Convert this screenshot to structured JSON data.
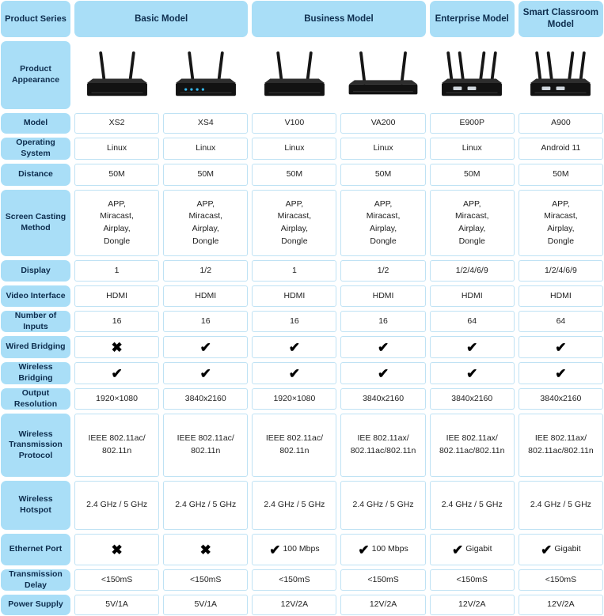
{
  "theme": {
    "header_fill": "#a9def7",
    "header_text": "#0d2d4e",
    "cell_border": "#bfe2f4",
    "cell_text": "#222222",
    "mark_color": "#000000",
    "led_color": "#35b9ef"
  },
  "table": {
    "corner_label": "Product Series",
    "groups": [
      {
        "label": "Basic Model",
        "span": 2
      },
      {
        "label": "Business Model",
        "span": 2
      },
      {
        "label": "Enterprise Model",
        "span": 1
      },
      {
        "label": "Smart Classroom Model",
        "span": 1
      }
    ],
    "appearance_row_label": "Product Appearance",
    "devices": [
      {
        "model": "XS2",
        "antennas": 2
      },
      {
        "model": "XS4",
        "antennas": 2,
        "leds": true
      },
      {
        "model": "V100",
        "antennas": 2
      },
      {
        "model": "VA200",
        "antennas": 2,
        "wide": true
      },
      {
        "model": "E900P",
        "antennas": 4,
        "ports": true
      },
      {
        "model": "A900",
        "antennas": 4,
        "ports": true
      }
    ],
    "marks": {
      "check": "✔",
      "cross": "✖"
    },
    "rows": [
      {
        "label": "Model",
        "cells": [
          "XS2",
          "XS4",
          "V100",
          "VA200",
          "E900P",
          "A900"
        ]
      },
      {
        "label": "Operating System",
        "cells": [
          "Linux",
          "Linux",
          "Linux",
          "Linux",
          "Linux",
          "Android 11"
        ]
      },
      {
        "label": "Distance",
        "cells": [
          "50M",
          "50M",
          "50M",
          "50M",
          "50M",
          "50M"
        ]
      },
      {
        "label": "Screen Casting Method",
        "cells": [
          "APP,\nMiracast,\nAirplay,\nDongle",
          "APP,\nMiracast,\nAirplay,\nDongle",
          "APP,\nMiracast,\nAirplay,\nDongle",
          "APP,\nMiracast,\nAirplay,\nDongle",
          "APP,\nMiracast,\nAirplay,\nDongle",
          "APP,\nMiracast,\nAirplay,\nDongle"
        ]
      },
      {
        "label": "Display",
        "cells": [
          "1",
          "1/2",
          "1",
          "1/2",
          "1/2/4/6/9",
          "1/2/4/6/9"
        ]
      },
      {
        "label": "Video Interface",
        "cells": [
          "HDMI",
          "HDMI",
          "HDMI",
          "HDMI",
          "HDMI",
          "HDMI"
        ]
      },
      {
        "label": "Number of Inputs",
        "cells": [
          "16",
          "16",
          "16",
          "16",
          "64",
          "64"
        ]
      },
      {
        "label": "Wired Bridging",
        "type": "mark",
        "cells": [
          {
            "mark": "cross"
          },
          {
            "mark": "check"
          },
          {
            "mark": "check"
          },
          {
            "mark": "check"
          },
          {
            "mark": "check"
          },
          {
            "mark": "check"
          }
        ]
      },
      {
        "label": "Wireless Bridging",
        "type": "mark",
        "cells": [
          {
            "mark": "check"
          },
          {
            "mark": "check"
          },
          {
            "mark": "check"
          },
          {
            "mark": "check"
          },
          {
            "mark": "check"
          },
          {
            "mark": "check"
          }
        ]
      },
      {
        "label": "Output Resolution",
        "cells": [
          "1920×1080",
          "3840x2160",
          "1920×1080",
          "3840x2160",
          "3840x2160",
          "3840x2160"
        ]
      },
      {
        "label": "Wireless Transmission Protocol",
        "cells": [
          "IEEE 802.11ac/\n802.11n",
          "IEEE 802.11ac/\n802.11n",
          "IEEE 802.11ac/\n802.11n",
          "IEE 802.11ax/\n802.11ac/802.11n",
          "IEE 802.11ax/\n802.11ac/802.11n",
          "IEE 802.11ax/\n802.11ac/802.11n"
        ]
      },
      {
        "label": "Wireless Hotspot",
        "cells": [
          "2.4 GHz / 5 GHz",
          "2.4 GHz / 5 GHz",
          "2.4 GHz / 5 GHz",
          "2.4 GHz / 5 GHz",
          "2.4 GHz / 5 GHz",
          "2.4 GHz / 5 GHz"
        ]
      },
      {
        "label": "Ethernet Port",
        "type": "mark",
        "cells": [
          {
            "mark": "cross"
          },
          {
            "mark": "cross"
          },
          {
            "mark": "check",
            "text": "100 Mbps"
          },
          {
            "mark": "check",
            "text": "100 Mbps"
          },
          {
            "mark": "check",
            "text": "Gigabit"
          },
          {
            "mark": "check",
            "text": "Gigabit"
          }
        ]
      },
      {
        "label": "Transmission Delay",
        "cells": [
          "<150mS",
          "<150mS",
          "<150mS",
          "<150mS",
          "<150mS",
          "<150mS"
        ]
      },
      {
        "label": "Power Supply",
        "cells": [
          "5V/1A",
          "5V/1A",
          "12V/2A",
          "12V/2A",
          "12V/2A",
          "12V/2A"
        ]
      }
    ]
  }
}
